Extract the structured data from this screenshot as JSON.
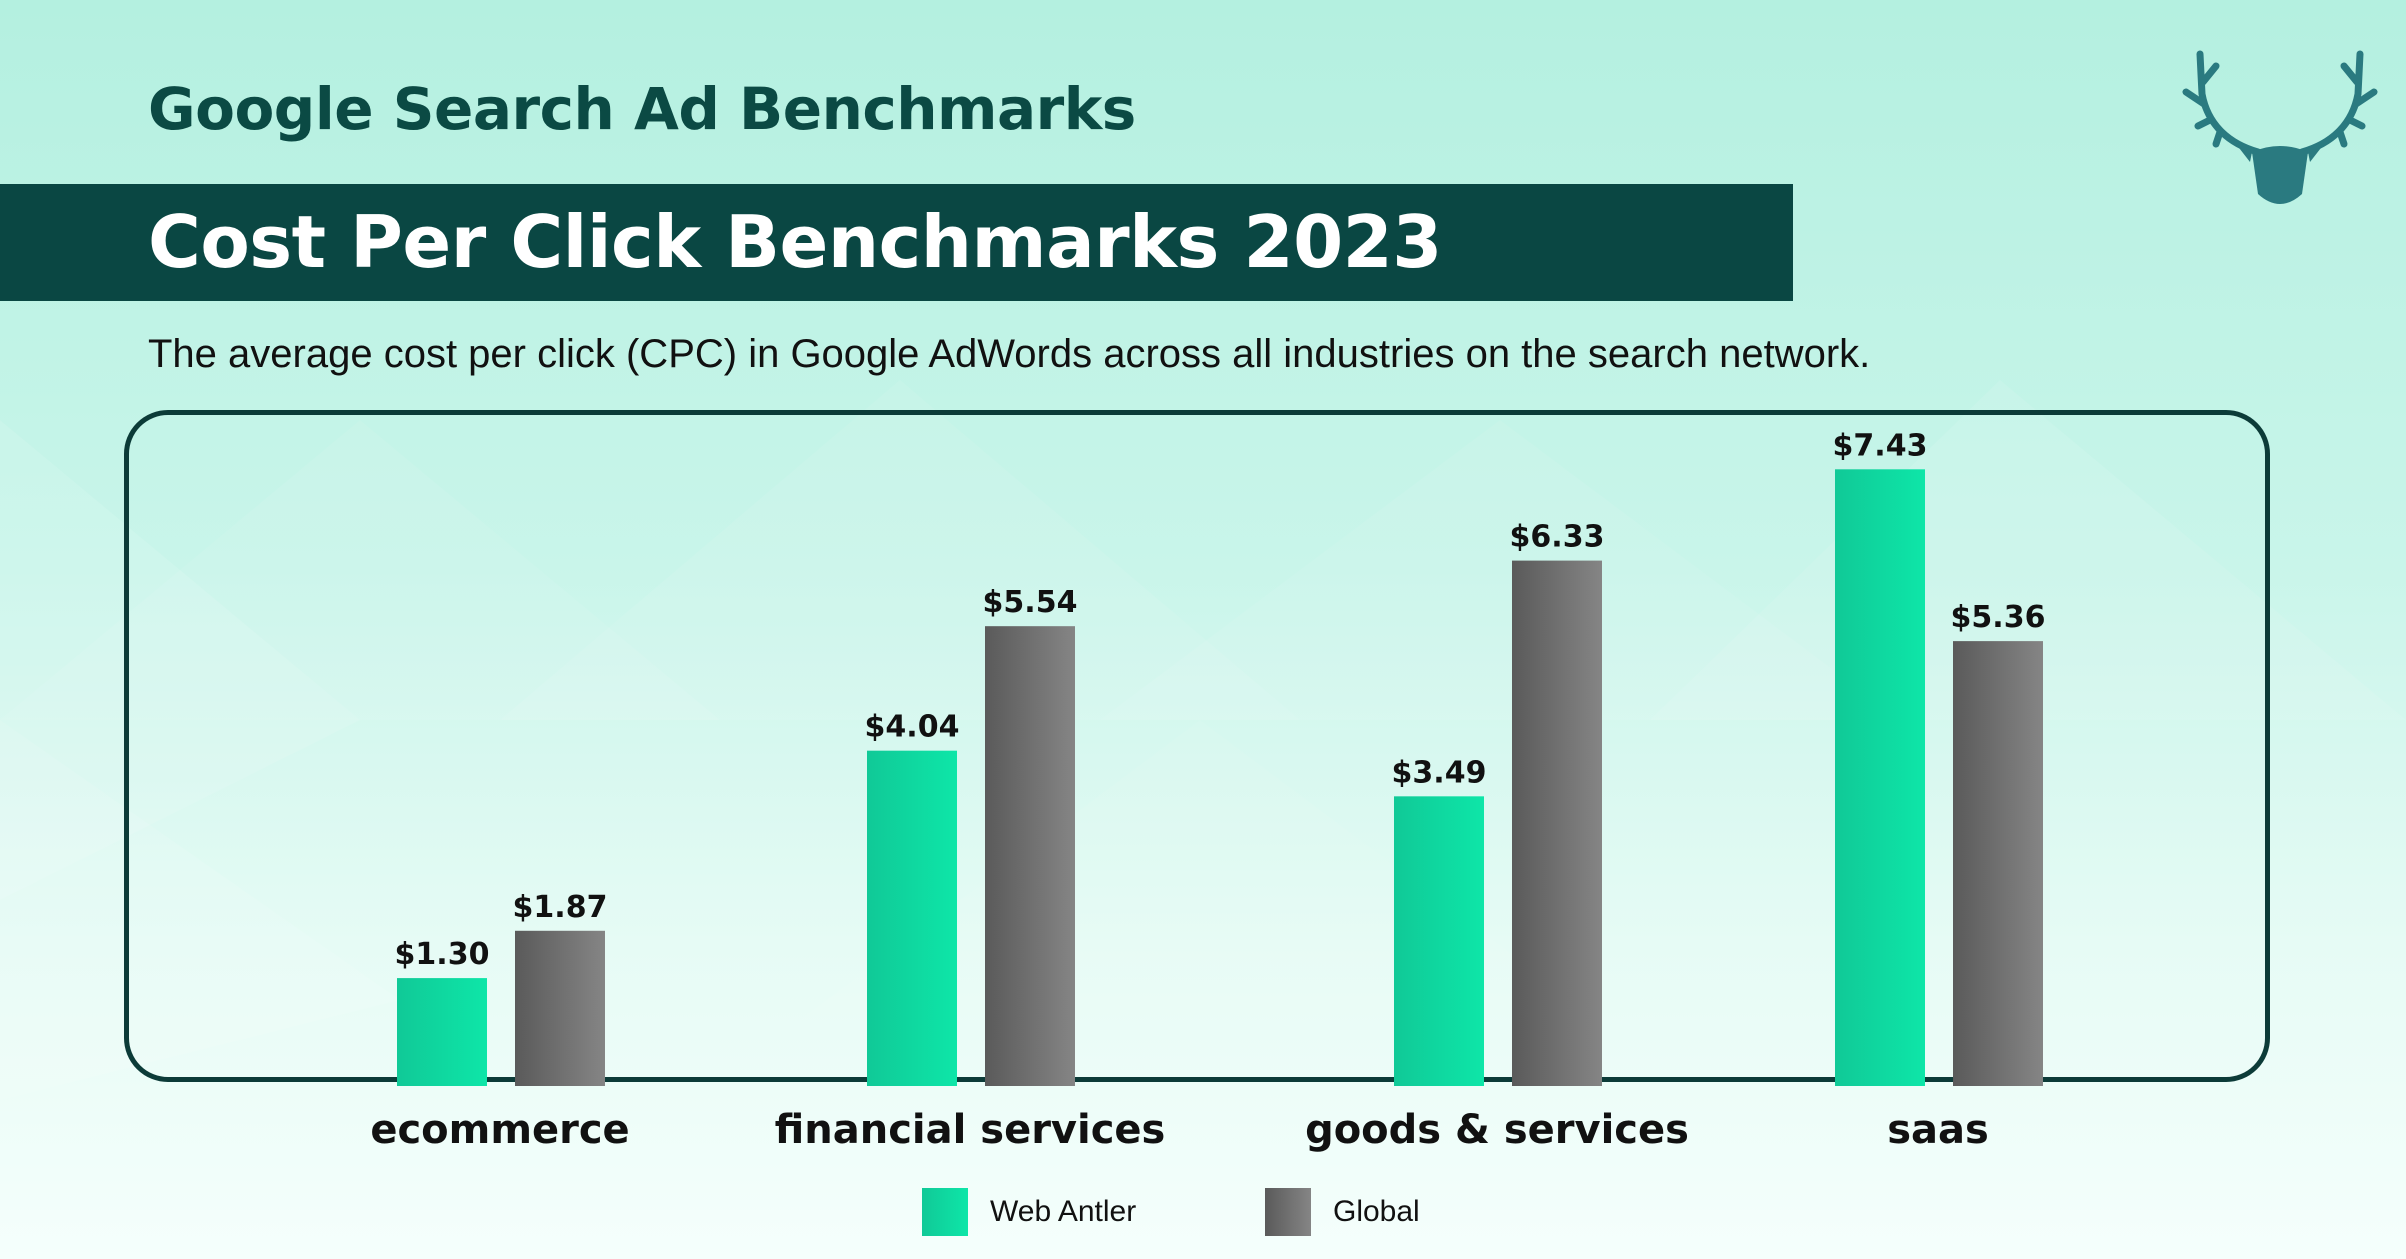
{
  "header": {
    "title": "Google Search Ad Benchmarks",
    "banner_title": "Cost Per Click Benchmarks 2023",
    "subtitle": "The average cost per click (CPC) in Google AdWords across all industries on the search network."
  },
  "logo": {
    "icon": "deer-antler-icon",
    "color": "#2a7a80"
  },
  "colors": {
    "web_antler": "#0fd9a0",
    "global": "#6e6e6e",
    "banner": "#0a4743",
    "title": "#0b4a44"
  },
  "chart_data": {
    "type": "bar",
    "title": "Cost Per Click Benchmarks 2023",
    "categories": [
      "ecommerce",
      "financial services",
      "goods & services",
      "saas"
    ],
    "series": [
      {
        "name": "Web Antler",
        "values": [
          1.3,
          4.04,
          3.49,
          7.43
        ],
        "labels": [
          "$1.30",
          "$4.04",
          "$3.49",
          "$7.43"
        ]
      },
      {
        "name": "Global",
        "values": [
          1.87,
          5.54,
          6.33,
          5.36
        ],
        "labels": [
          "$1.87",
          "$5.54",
          "$6.33",
          "$5.36"
        ]
      }
    ],
    "ylim": [
      0,
      8
    ],
    "grid": false,
    "legend": "bottom-center"
  }
}
